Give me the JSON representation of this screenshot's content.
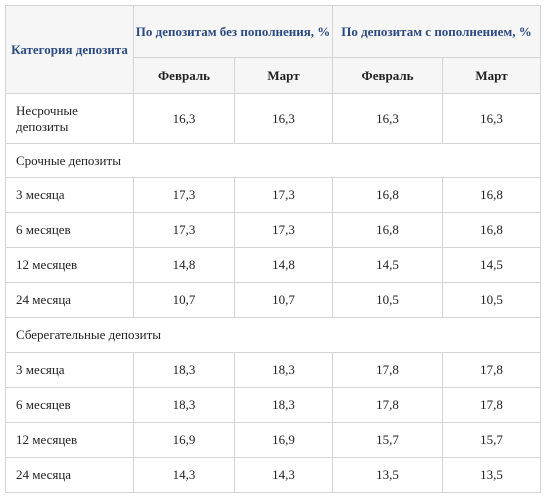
{
  "table": {
    "header": {
      "category": "Категория депозита",
      "group1": "По депозитам без пополнения, %",
      "group2": "По депозитам с пополнением, %",
      "months": [
        "Февраль",
        "Март",
        "Февраль",
        "Март"
      ]
    },
    "rows": [
      {
        "label": "Несрочные депозиты",
        "values": [
          "16,3",
          "16,3",
          "16,3",
          "16,3"
        ]
      },
      {
        "section": "Срочные депозиты"
      },
      {
        "label": "3 месяца",
        "values": [
          "17,3",
          "17,3",
          "16,8",
          "16,8"
        ]
      },
      {
        "label": "6 месяцев",
        "values": [
          "17,3",
          "17,3",
          "16,8",
          "16,8"
        ]
      },
      {
        "label": "12 месяцев",
        "values": [
          "14,8",
          "14,8",
          "14,5",
          "14,5"
        ]
      },
      {
        "label": "24 месяца",
        "values": [
          "10,7",
          "10,7",
          "10,5",
          "10,5"
        ]
      },
      {
        "section": "Сберегательные депозиты"
      },
      {
        "label": "3 месяца",
        "values": [
          "18,3",
          "18,3",
          "17,8",
          "17,8"
        ]
      },
      {
        "label": "6 месяцев",
        "values": [
          "18,3",
          "18,3",
          "17,8",
          "17,8"
        ]
      },
      {
        "label": "12 месяцев",
        "values": [
          "16,9",
          "16,9",
          "15,7",
          "15,7"
        ]
      },
      {
        "label": "24 месяца",
        "values": [
          "14,3",
          "14,3",
          "13,5",
          "13,5"
        ]
      }
    ]
  }
}
